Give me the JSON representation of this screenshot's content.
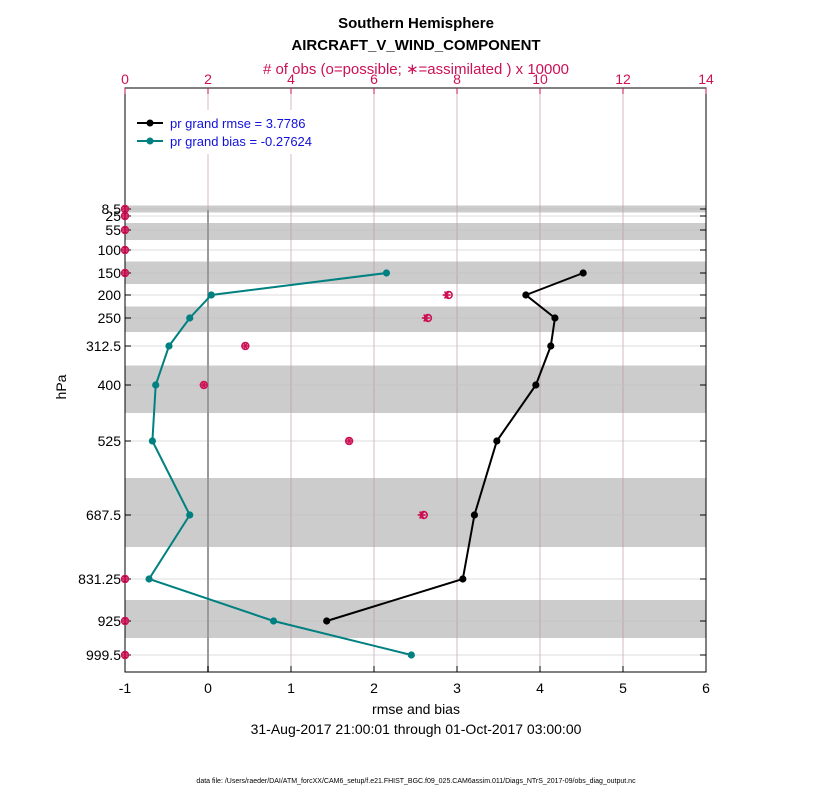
{
  "chart_data": {
    "type": "line",
    "title": "Southern Hemisphere",
    "subtitle": "AIRCRAFT_V_WIND_COMPONENT",
    "top_axis_label": "# of obs (o=possible; ∗=assimilated ) x 10000",
    "xlabel": "rmse and bias",
    "ylabel": "hPa",
    "date_range": "31-Aug-2017 21:00:01 through 01-Oct-2017 03:00:00",
    "footer": "data file: /Users/raeder/DAI/ATM_forcXX/CAM6_setup/f.e21.FHIST_BGC.f09_025.CAM6assim.011/Diags_NTrS_2017-09/obs_diag_output.nc",
    "xlim": [
      -1,
      6
    ],
    "xticks": [
      -1,
      0,
      1,
      2,
      3,
      4,
      5,
      6
    ],
    "top_xlim": [
      0,
      14
    ],
    "top_xticks": [
      0,
      2,
      4,
      6,
      8,
      10,
      12,
      14
    ],
    "levels": [
      8.5,
      25,
      55,
      100,
      150,
      200,
      250,
      312.5,
      400,
      525,
      687.5,
      831.25,
      925,
      999.5
    ],
    "level_labels": [
      "8.5",
      "25",
      "55",
      "100",
      "150",
      "200",
      "250",
      "312.5",
      "400",
      "525",
      "687.5",
      "831.25",
      "925",
      "999.5"
    ],
    "series": [
      {
        "name": "pr grand rmse = 3.7786",
        "color": "#000000",
        "levels": [
          150,
          200,
          250,
          312.5,
          400,
          525,
          687.5,
          831.25,
          925
        ],
        "values": [
          4.52,
          3.83,
          4.18,
          4.13,
          3.95,
          3.48,
          3.21,
          3.07,
          1.43
        ]
      },
      {
        "name": "pr grand bias = -0.27624",
        "color": "#008080",
        "levels": [
          150,
          200,
          250,
          312.5,
          400,
          525,
          687.5,
          831.25,
          925,
          999.5
        ],
        "values": [
          2.15,
          0.04,
          -0.22,
          -0.47,
          -0.63,
          -0.67,
          -0.22,
          -0.71,
          0.79,
          2.45
        ]
      }
    ],
    "obs_possible": {
      "color": "#cc1155",
      "levels": [
        8.5,
        25,
        55,
        100,
        150,
        200,
        250,
        312.5,
        400,
        525,
        687.5,
        831.25,
        925,
        999.5
      ],
      "values": [
        0.0,
        0.0,
        0.0,
        0.0,
        0.0,
        7.8,
        7.3,
        2.9,
        1.9,
        5.4,
        7.2,
        0.0,
        0.0,
        0.0
      ]
    },
    "obs_assimilated": {
      "color": "#cc1155",
      "levels": [
        8.5,
        25,
        55,
        100,
        150,
        200,
        250,
        312.5,
        400,
        525,
        687.5,
        831.25,
        925,
        999.5
      ],
      "values": [
        0.0,
        0.0,
        0.0,
        0.0,
        0.0,
        7.75,
        7.25,
        2.9,
        1.9,
        5.4,
        7.15,
        0.0,
        0.0,
        0.0
      ]
    },
    "legend_position": "top-left",
    "grid": true
  }
}
